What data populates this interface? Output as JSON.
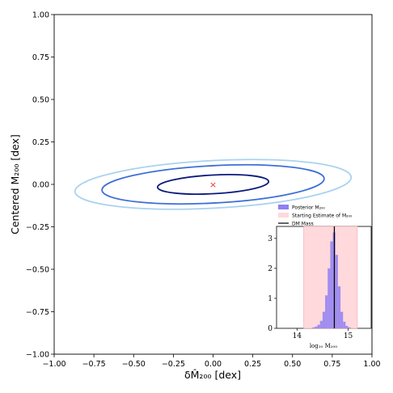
{
  "chart_data": [
    {
      "type": "contour",
      "title": "",
      "xlabel": "δM̂₂₀₀ [dex]",
      "ylabel": "Centered M₂₀₀ [dex]",
      "xlim": [
        -1.0,
        1.0
      ],
      "ylim": [
        -1.0,
        1.0
      ],
      "xticks": [
        "−1.00",
        "−0.75",
        "−0.50",
        "−0.25",
        "0.00",
        "0.25",
        "0.50",
        "0.75",
        "1.00"
      ],
      "yticks": [
        "−1.00",
        "−0.75",
        "−0.50",
        "−0.25",
        "0.00",
        "0.25",
        "0.50",
        "0.75",
        "1.00"
      ],
      "grid": false,
      "center_marker": {
        "x": 0.0,
        "y": 0.0,
        "symbol": "×",
        "color": "#e8312b"
      },
      "ellipses": [
        {
          "level": "inner",
          "cx": 0.0,
          "cy": 0.0,
          "rx": 0.35,
          "ry": 0.055,
          "angle_deg": 3,
          "color": "#0a1a7a"
        },
        {
          "level": "middle",
          "cx": 0.0,
          "cy": 0.0,
          "rx": 0.7,
          "ry": 0.11,
          "angle_deg": 3,
          "color": "#3d6fd6"
        },
        {
          "level": "outer",
          "cx": 0.0,
          "cy": 0.0,
          "rx": 0.87,
          "ry": 0.14,
          "angle_deg": 3,
          "color": "#a9d2f0"
        }
      ]
    },
    {
      "type": "histogram",
      "inset": true,
      "xlabel": "log₁₀ M₂₀₀",
      "xlim": [
        13.6,
        15.45
      ],
      "ylim": [
        0,
        3.4
      ],
      "xticks": [
        "14",
        "15"
      ],
      "yticks": [
        "0",
        "1",
        "2",
        "3"
      ],
      "legend_position": "top",
      "legend": [
        {
          "label": "Posterior M₂₀₀",
          "color": "#8f7ff2"
        },
        {
          "label": "Starting Estimate of M₂₀₀",
          "color": "#ffd9dc"
        },
        {
          "label": "DM Mass",
          "color": "#000000"
        }
      ],
      "band": {
        "x0": 14.13,
        "x1": 15.18,
        "color": "#ffd9dc"
      },
      "vline": {
        "x": 14.73,
        "color": "#000000"
      },
      "bin_edges": [
        14.3,
        14.35,
        14.4,
        14.45,
        14.5,
        14.55,
        14.6,
        14.65,
        14.7,
        14.75,
        14.8,
        14.85,
        14.9,
        14.95,
        15.0,
        15.05
      ],
      "counts": [
        0.03,
        0.06,
        0.12,
        0.25,
        0.55,
        1.1,
        2.0,
        2.9,
        3.2,
        2.45,
        1.4,
        0.55,
        0.22,
        0.08,
        0.03
      ],
      "hist_color": "#8f7ff2"
    }
  ]
}
